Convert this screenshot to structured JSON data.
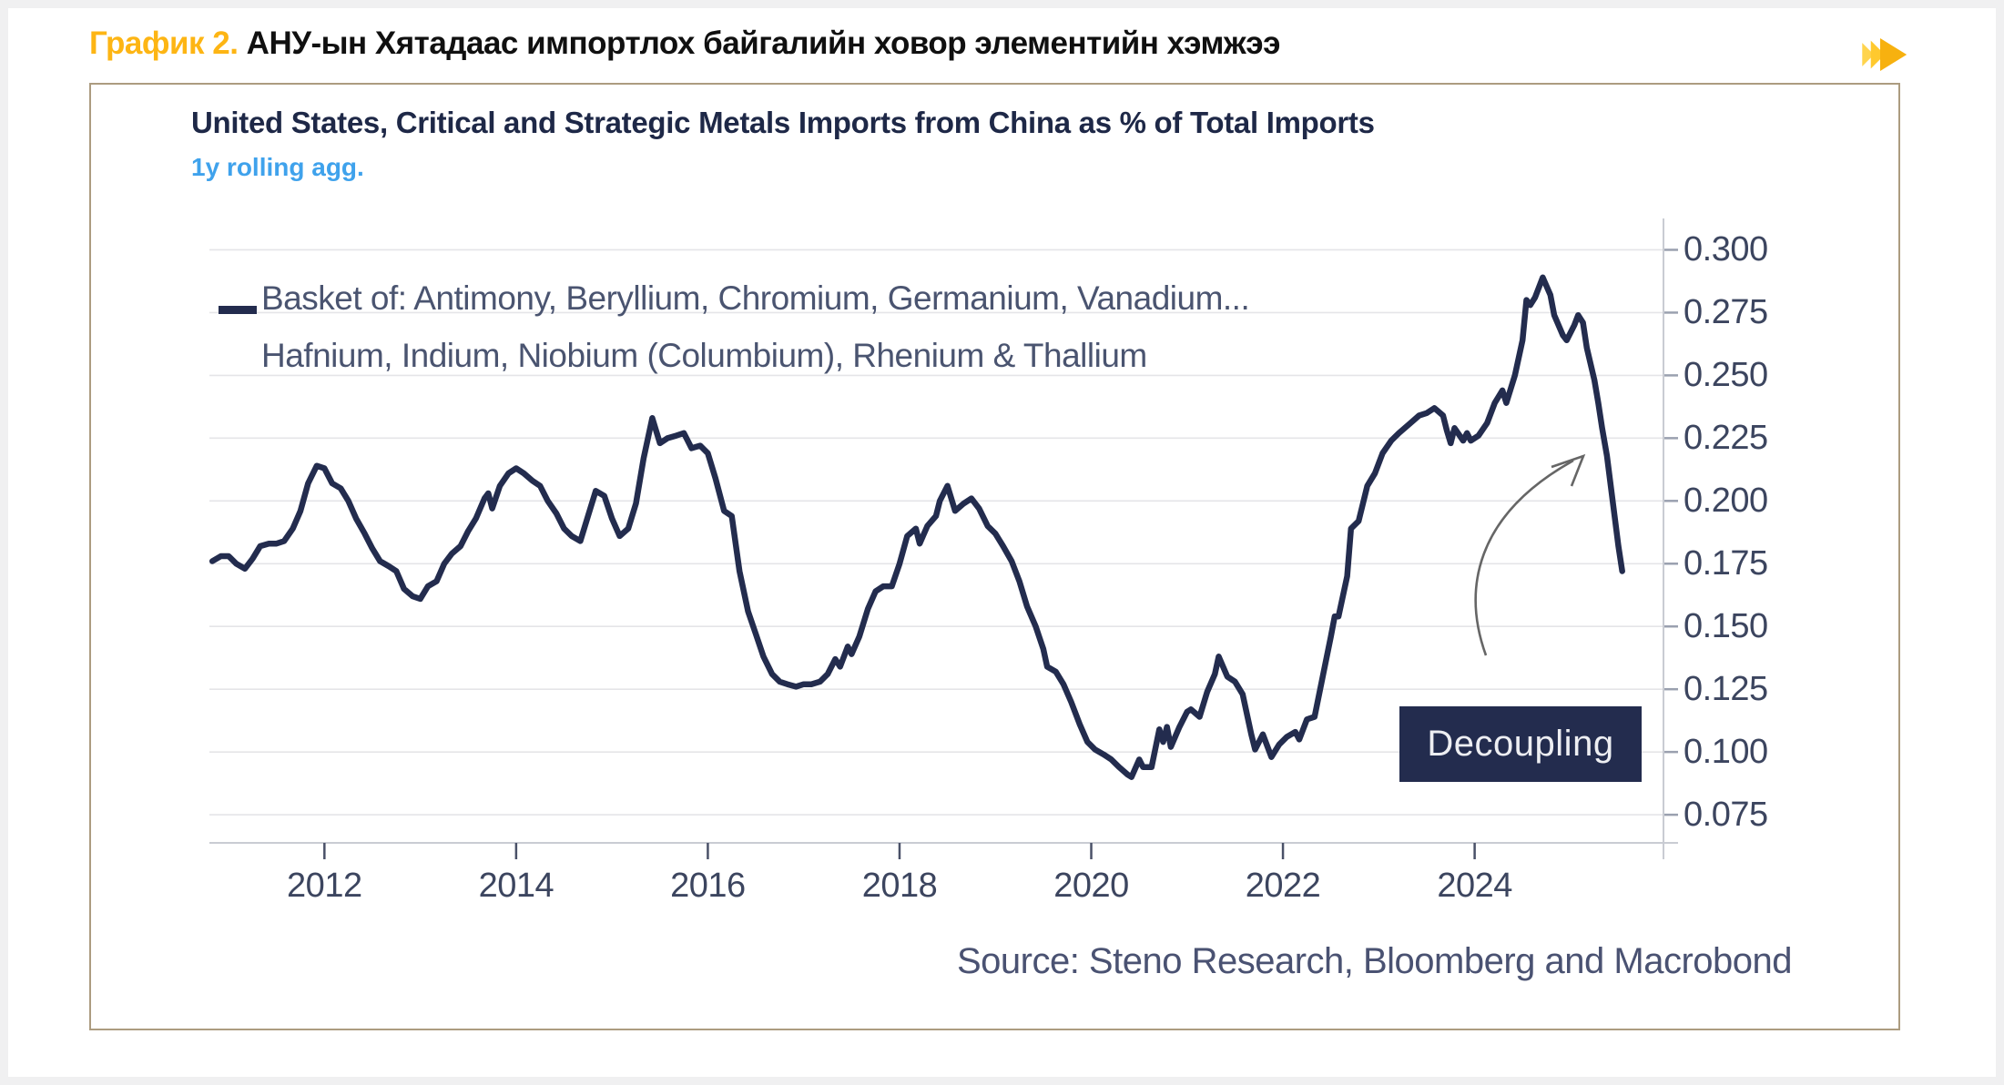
{
  "header": {
    "label": "График 2.",
    "title": "АНУ-ын Хятадаас импортлох байгалийн ховор элементийн хэмжээ",
    "accent_color": "#FDB514",
    "icon": "fast-forward-icon",
    "icon_colors": [
      "#FFD44D",
      "#FFC92E",
      "#F7B10F"
    ]
  },
  "chart_data": {
    "type": "line",
    "title": "United States, Critical and Strategic Metals Imports from China as % of Total Imports",
    "subtitle": "1y rolling agg.",
    "legend": [
      "Basket of: Antimony, Beryllium, Chromium, Germanium, Vanadium...",
      "Hafnium, Indium, Niobium (Columbium), Rhenium & Thallium"
    ],
    "source": "Source: Steno Research, Bloomberg and Macrobond",
    "line_color": "#232C4E",
    "annotation": {
      "text": "Decoupling",
      "bg_color": "#232C4E",
      "text_color": "#EDEEF2",
      "arrow": "curved arrow pointing to 2025 decline"
    },
    "grid": "horizontal",
    "y_axis_side": "right",
    "xlim": [
      2010.8,
      2025.97
    ],
    "ylim": [
      0.0638,
      0.3125
    ],
    "xticks": [
      2012,
      2014,
      2016,
      2018,
      2020,
      2022,
      2024
    ],
    "yticks": [
      0.075,
      0.1,
      0.125,
      0.15,
      0.175,
      0.2,
      0.225,
      0.25,
      0.275,
      0.3
    ],
    "x": [
      2010.83,
      2010.92,
      2011.0,
      2011.08,
      2011.17,
      2011.25,
      2011.33,
      2011.42,
      2011.5,
      2011.58,
      2011.67,
      2011.75,
      2011.83,
      2011.92,
      2012.0,
      2012.08,
      2012.17,
      2012.25,
      2012.33,
      2012.42,
      2012.5,
      2012.58,
      2012.67,
      2012.75,
      2012.83,
      2012.92,
      2013.0,
      2013.08,
      2013.17,
      2013.25,
      2013.33,
      2013.42,
      2013.5,
      2013.58,
      2013.67,
      2013.71,
      2013.75,
      2013.83,
      2013.92,
      2014.0,
      2014.08,
      2014.17,
      2014.25,
      2014.33,
      2014.42,
      2014.5,
      2014.58,
      2014.67,
      2014.75,
      2014.83,
      2014.92,
      2015.0,
      2015.08,
      2015.17,
      2015.25,
      2015.33,
      2015.42,
      2015.5,
      2015.58,
      2015.67,
      2015.75,
      2015.83,
      2015.92,
      2016.0,
      2016.08,
      2016.17,
      2016.25,
      2016.33,
      2016.42,
      2016.5,
      2016.58,
      2016.67,
      2016.75,
      2016.83,
      2016.92,
      2017.0,
      2017.08,
      2017.17,
      2017.25,
      2017.33,
      2017.38,
      2017.46,
      2017.5,
      2017.58,
      2017.67,
      2017.75,
      2017.83,
      2017.92,
      2018.0,
      2018.08,
      2018.17,
      2018.21,
      2018.29,
      2018.38,
      2018.42,
      2018.5,
      2018.58,
      2018.67,
      2018.75,
      2018.83,
      2018.92,
      2019.0,
      2019.08,
      2019.17,
      2019.25,
      2019.33,
      2019.42,
      2019.5,
      2019.54,
      2019.63,
      2019.71,
      2019.79,
      2019.88,
      2019.96,
      2020.04,
      2020.13,
      2020.21,
      2020.29,
      2020.38,
      2020.42,
      2020.5,
      2020.54,
      2020.63,
      2020.71,
      2020.75,
      2020.79,
      2020.83,
      2020.92,
      2021.0,
      2021.04,
      2021.13,
      2021.21,
      2021.29,
      2021.33,
      2021.42,
      2021.5,
      2021.58,
      2021.67,
      2021.71,
      2021.79,
      2021.88,
      2021.96,
      2022.04,
      2022.13,
      2022.17,
      2022.25,
      2022.33,
      2022.42,
      2022.5,
      2022.54,
      2022.58,
      2022.67,
      2022.71,
      2022.79,
      2022.88,
      2022.96,
      2023.04,
      2023.13,
      2023.21,
      2023.33,
      2023.42,
      2023.5,
      2023.58,
      2023.67,
      2023.71,
      2023.75,
      2023.79,
      2023.88,
      2023.92,
      2023.96,
      2024.04,
      2024.13,
      2024.21,
      2024.29,
      2024.33,
      2024.42,
      2024.5,
      2024.54,
      2024.58,
      2024.63,
      2024.71,
      2024.79,
      2024.83,
      2024.92,
      2024.96,
      2025.04,
      2025.08,
      2025.13,
      2025.17,
      2025.25,
      2025.29,
      2025.33,
      2025.38,
      2025.42,
      2025.46,
      2025.5,
      2025.54
    ],
    "y": [
      0.176,
      0.178,
      0.178,
      0.175,
      0.173,
      0.177,
      0.182,
      0.183,
      0.183,
      0.184,
      0.189,
      0.196,
      0.207,
      0.214,
      0.213,
      0.207,
      0.205,
      0.2,
      0.193,
      0.187,
      0.181,
      0.176,
      0.174,
      0.172,
      0.165,
      0.162,
      0.161,
      0.166,
      0.168,
      0.175,
      0.179,
      0.182,
      0.188,
      0.193,
      0.201,
      0.203,
      0.197,
      0.206,
      0.211,
      0.213,
      0.211,
      0.208,
      0.206,
      0.2,
      0.195,
      0.189,
      0.186,
      0.184,
      0.194,
      0.204,
      0.202,
      0.193,
      0.186,
      0.189,
      0.199,
      0.217,
      0.233,
      0.223,
      0.225,
      0.226,
      0.227,
      0.221,
      0.222,
      0.219,
      0.209,
      0.196,
      0.194,
      0.172,
      0.156,
      0.147,
      0.138,
      0.131,
      0.128,
      0.127,
      0.126,
      0.127,
      0.127,
      0.128,
      0.131,
      0.137,
      0.134,
      0.142,
      0.139,
      0.146,
      0.157,
      0.164,
      0.166,
      0.166,
      0.175,
      0.186,
      0.189,
      0.183,
      0.19,
      0.194,
      0.2,
      0.206,
      0.196,
      0.199,
      0.201,
      0.197,
      0.19,
      0.187,
      0.182,
      0.176,
      0.168,
      0.158,
      0.15,
      0.141,
      0.134,
      0.132,
      0.127,
      0.12,
      0.111,
      0.104,
      0.101,
      0.099,
      0.097,
      0.094,
      0.091,
      0.09,
      0.097,
      0.094,
      0.094,
      0.109,
      0.104,
      0.11,
      0.102,
      0.11,
      0.116,
      0.117,
      0.114,
      0.124,
      0.131,
      0.138,
      0.13,
      0.128,
      0.123,
      0.107,
      0.101,
      0.107,
      0.098,
      0.103,
      0.106,
      0.108,
      0.105,
      0.113,
      0.114,
      0.131,
      0.146,
      0.154,
      0.154,
      0.17,
      0.189,
      0.192,
      0.206,
      0.211,
      0.219,
      0.224,
      0.227,
      0.231,
      0.234,
      0.235,
      0.237,
      0.234,
      0.228,
      0.223,
      0.229,
      0.224,
      0.227,
      0.224,
      0.226,
      0.231,
      0.239,
      0.244,
      0.239,
      0.25,
      0.264,
      0.28,
      0.278,
      0.281,
      0.289,
      0.282,
      0.274,
      0.266,
      0.264,
      0.27,
      0.274,
      0.271,
      0.261,
      0.248,
      0.239,
      0.229,
      0.218,
      0.206,
      0.194,
      0.182,
      0.172
    ]
  },
  "colors": {
    "grid": "#E5E5E8",
    "axis": "#C9CCD3",
    "ytick_mark": "#9AA0AF",
    "xtick_mark": "#4A5168",
    "tick_label": "#3C455F",
    "arrow": "#666666"
  }
}
